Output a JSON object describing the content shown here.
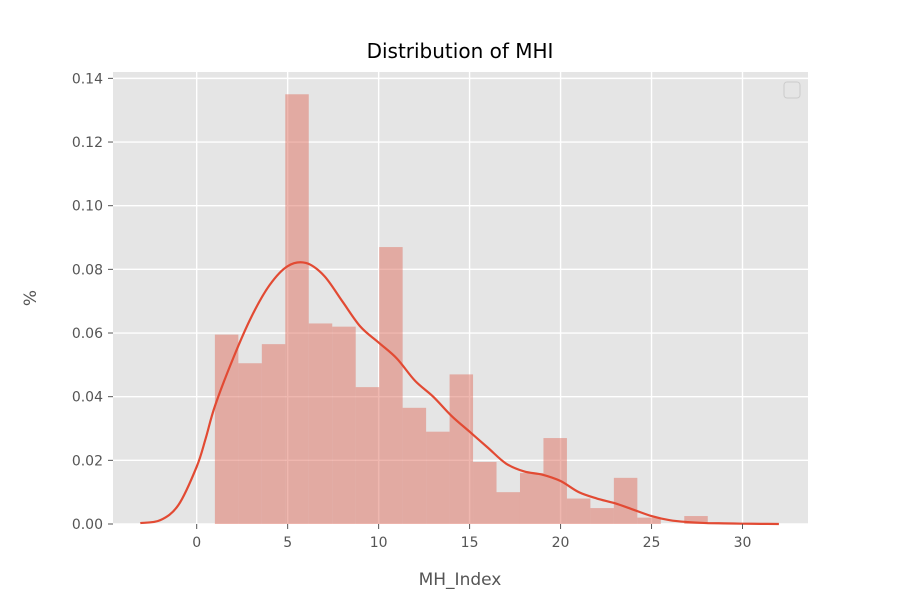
{
  "chart_data": {
    "type": "histogram",
    "title": "Distribution of MHI",
    "xlabel": "MH_Index",
    "ylabel": "%",
    "xlim": [
      -4.6,
      33.6
    ],
    "ylim": [
      0,
      0.142
    ],
    "x_ticks": [
      0,
      5,
      10,
      15,
      20,
      25,
      30
    ],
    "y_ticks": [
      0.0,
      0.02,
      0.04,
      0.06,
      0.08,
      0.1,
      0.12,
      0.14
    ],
    "y_tick_labels": [
      "0.00",
      "0.02",
      "0.04",
      "0.06",
      "0.08",
      "0.10",
      "0.12",
      "0.14"
    ],
    "grid": true,
    "style": "ggplot",
    "legend": {
      "placement": "top-right",
      "entries": []
    },
    "colors": {
      "background": "#e5e5e5",
      "grid": "#ffffff",
      "bars": "#e07060",
      "bars_opacity": 0.5,
      "kde_line": "#e24a33"
    },
    "histogram": {
      "bin_width": 1.29,
      "bins": [
        {
          "x0": 1.0,
          "x1": 2.29,
          "value": 0.0595
        },
        {
          "x0": 2.29,
          "x1": 3.58,
          "value": 0.0505
        },
        {
          "x0": 3.58,
          "x1": 4.87,
          "value": 0.0565
        },
        {
          "x0": 4.87,
          "x1": 6.16,
          "value": 0.135
        },
        {
          "x0": 6.16,
          "x1": 7.45,
          "value": 0.063
        },
        {
          "x0": 7.45,
          "x1": 8.74,
          "value": 0.062
        },
        {
          "x0": 8.74,
          "x1": 10.03,
          "value": 0.043
        },
        {
          "x0": 10.03,
          "x1": 11.32,
          "value": 0.087
        },
        {
          "x0": 11.32,
          "x1": 12.61,
          "value": 0.0365
        },
        {
          "x0": 12.61,
          "x1": 13.9,
          "value": 0.029
        },
        {
          "x0": 13.9,
          "x1": 15.19,
          "value": 0.047
        },
        {
          "x0": 15.19,
          "x1": 16.48,
          "value": 0.0195
        },
        {
          "x0": 16.48,
          "x1": 17.77,
          "value": 0.01
        },
        {
          "x0": 17.77,
          "x1": 19.06,
          "value": 0.016
        },
        {
          "x0": 19.06,
          "x1": 20.35,
          "value": 0.027
        },
        {
          "x0": 20.35,
          "x1": 21.64,
          "value": 0.008
        },
        {
          "x0": 21.64,
          "x1": 22.93,
          "value": 0.005
        },
        {
          "x0": 22.93,
          "x1": 24.22,
          "value": 0.0145
        },
        {
          "x0": 24.22,
          "x1": 25.51,
          "value": 0.002
        },
        {
          "x0": 25.51,
          "x1": 26.8,
          "value": 0.0
        },
        {
          "x0": 26.8,
          "x1": 28.09,
          "value": 0.0025
        }
      ]
    },
    "kde": {
      "x": [
        -3.1,
        -2,
        -1,
        0,
        0.5,
        1,
        2,
        3,
        4,
        5,
        6,
        7,
        8,
        9,
        10,
        11,
        12,
        13,
        14,
        15,
        16,
        17,
        18,
        19,
        20,
        21,
        22,
        23,
        24,
        25,
        26,
        27,
        28,
        29,
        30,
        31,
        32
      ],
      "y": [
        0.0003,
        0.0012,
        0.006,
        0.018,
        0.027,
        0.037,
        0.052,
        0.065,
        0.075,
        0.081,
        0.082,
        0.078,
        0.07,
        0.062,
        0.057,
        0.052,
        0.045,
        0.04,
        0.034,
        0.029,
        0.024,
        0.019,
        0.0165,
        0.0155,
        0.0135,
        0.01,
        0.008,
        0.0065,
        0.0045,
        0.0025,
        0.0012,
        0.0006,
        0.0003,
        0.0002,
        0.0001,
        5e-05,
        0.0
      ]
    }
  }
}
